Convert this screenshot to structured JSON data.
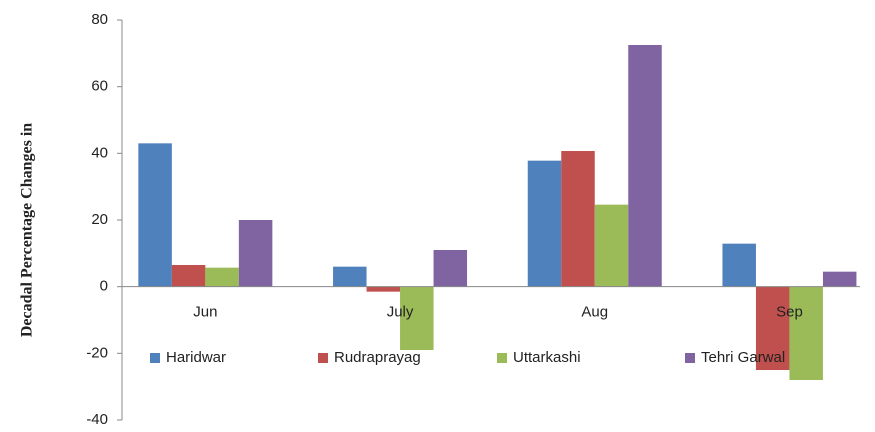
{
  "chart_data": {
    "type": "bar",
    "y_label": "Decadal Percentage Changes in",
    "categories": [
      "Jun",
      "July",
      "Aug",
      "Sep"
    ],
    "series": [
      {
        "name": "Haridwar",
        "color": "#4f81bd",
        "values": [
          43,
          6,
          37.8,
          12.9
        ]
      },
      {
        "name": "Rudraprayag",
        "color": "#c0504d",
        "values": [
          6.5,
          -1.5,
          40.7,
          -25
        ]
      },
      {
        "name": "Uttarkashi",
        "color": "#9bbb59",
        "values": [
          5.7,
          -19,
          24.6,
          -28
        ]
      },
      {
        "name": "Tehri Garwal",
        "color": "#8064a2",
        "values": [
          20,
          11,
          72.5,
          4.5
        ]
      }
    ],
    "ylim": [
      -40,
      80
    ],
    "yticks": [
      -40,
      -20,
      0,
      20,
      40,
      60,
      80
    ],
    "legend": "bottom",
    "grid": false
  }
}
